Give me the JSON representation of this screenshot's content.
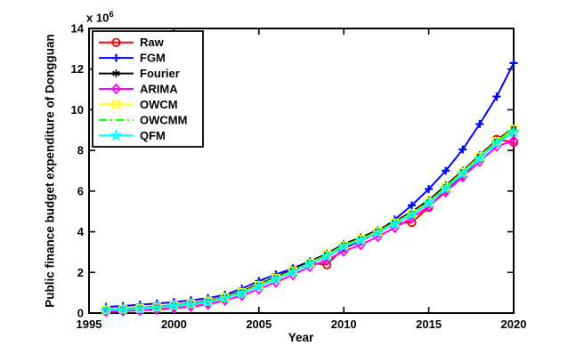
{
  "figure": {
    "background": "#ffffff",
    "axis_color": "#000000",
    "tick_label_color": "#000000"
  },
  "labels": {
    "xlabel": "Year",
    "ylabel": "Public finance budget expenditure of Dongguan",
    "exponent_prefix": "x 10",
    "exponent_sup": "6"
  },
  "chart_data": {
    "type": "line",
    "title": "",
    "xlabel": "Year",
    "ylabel": "Public finance budget expenditure of Dongguan",
    "y_scale_label": "x 10^6",
    "xlim": [
      1995,
      2020
    ],
    "ylim": [
      0,
      14
    ],
    "xticks": [
      1995,
      2000,
      2005,
      2010,
      2015,
      2020
    ],
    "yticks": [
      0,
      2,
      4,
      6,
      8,
      10,
      12,
      14
    ],
    "grid": false,
    "legend_position": "top-left",
    "x": [
      1996,
      1997,
      1998,
      1999,
      2000,
      2001,
      2002,
      2003,
      2004,
      2005,
      2006,
      2007,
      2008,
      2009,
      2010,
      2011,
      2012,
      2013,
      2014,
      2015,
      2016,
      2017,
      2018,
      2019,
      2020
    ],
    "series": [
      {
        "name": "Raw",
        "color": "#ff0000",
        "marker": "circle",
        "linestyle": "solid",
        "values": [
          0.14,
          0.17,
          0.21,
          0.26,
          0.33,
          0.42,
          0.52,
          0.74,
          1.0,
          1.36,
          1.74,
          2.12,
          2.46,
          2.38,
          3.2,
          3.55,
          3.95,
          4.42,
          4.46,
          5.2,
          6.05,
          6.78,
          7.6,
          8.55,
          8.4
        ]
      },
      {
        "name": "FGM",
        "color": "#0000ff",
        "marker": "plus",
        "linestyle": "solid",
        "values": [
          0.3,
          0.35,
          0.41,
          0.47,
          0.54,
          0.63,
          0.73,
          0.9,
          1.2,
          1.58,
          1.9,
          2.2,
          2.55,
          2.9,
          3.2,
          3.55,
          4.0,
          4.6,
          5.3,
          6.1,
          7.0,
          8.05,
          9.3,
          10.65,
          12.3
        ]
      },
      {
        "name": "Fourier",
        "color": "#000000",
        "marker": "asterisk",
        "linestyle": "solid",
        "values": [
          0.16,
          0.2,
          0.25,
          0.31,
          0.39,
          0.48,
          0.6,
          0.8,
          1.06,
          1.42,
          1.77,
          2.13,
          2.52,
          2.92,
          3.4,
          3.72,
          4.08,
          4.5,
          4.98,
          5.55,
          6.28,
          7.0,
          7.76,
          8.5,
          9.1
        ]
      },
      {
        "name": "ARIMA",
        "color": "#ff00ff",
        "marker": "diamond",
        "linestyle": "solid",
        "values": [
          0.08,
          0.1,
          0.13,
          0.17,
          0.24,
          0.32,
          0.42,
          0.62,
          0.86,
          1.18,
          1.52,
          1.88,
          2.28,
          2.62,
          3.04,
          3.36,
          3.76,
          4.2,
          4.68,
          5.25,
          5.95,
          6.7,
          7.45,
          8.2,
          8.48
        ]
      },
      {
        "name": "OWCM",
        "color": "#ffff00",
        "marker": "square",
        "linestyle": "solid",
        "values": [
          0.15,
          0.19,
          0.23,
          0.29,
          0.37,
          0.46,
          0.57,
          0.77,
          1.02,
          1.37,
          1.72,
          2.08,
          2.47,
          2.86,
          3.34,
          3.64,
          4.02,
          4.44,
          4.9,
          5.46,
          6.2,
          6.94,
          7.7,
          8.44,
          9.05
        ]
      },
      {
        "name": "OWCMM",
        "color": "#00ff00",
        "marker": "none",
        "linestyle": "dashdot",
        "values": [
          0.15,
          0.18,
          0.22,
          0.28,
          0.36,
          0.45,
          0.56,
          0.75,
          1.0,
          1.35,
          1.7,
          2.06,
          2.45,
          2.84,
          3.32,
          3.62,
          4.0,
          4.42,
          4.88,
          5.44,
          6.18,
          6.92,
          7.68,
          8.42,
          9.0
        ]
      },
      {
        "name": "QFM",
        "color": "#00ffff",
        "marker": "pentagram",
        "linestyle": "solid",
        "values": [
          0.14,
          0.17,
          0.21,
          0.27,
          0.34,
          0.43,
          0.54,
          0.73,
          0.97,
          1.32,
          1.67,
          2.02,
          2.42,
          2.8,
          3.28,
          3.58,
          3.96,
          4.38,
          4.84,
          5.4,
          6.12,
          6.86,
          7.6,
          8.36,
          8.9
        ]
      }
    ]
  }
}
